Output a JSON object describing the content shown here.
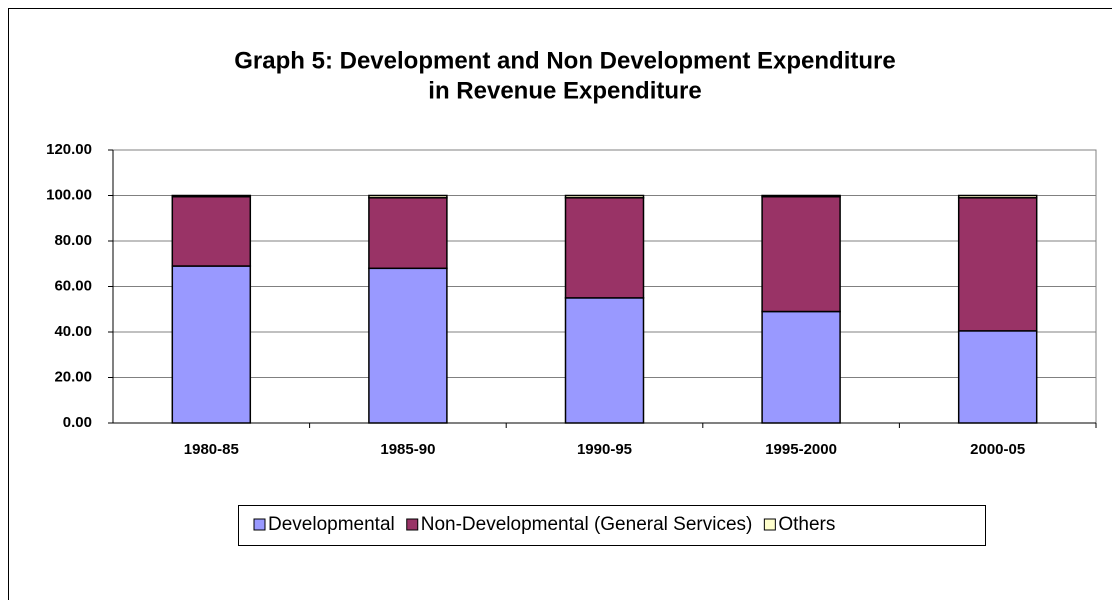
{
  "chart_data": {
    "type": "stacked_bar",
    "title": [
      "Graph 5: Development and Non Development Expenditure",
      "in Revenue Expenditure"
    ],
    "categories": [
      "1980-85",
      "1985-90",
      "1990-95",
      "1995-2000",
      "2000-05"
    ],
    "series": [
      {
        "name": "Developmental",
        "color": "#9999ff",
        "values": [
          69,
          68,
          55,
          49,
          40.5
        ]
      },
      {
        "name": "Non-Developmental (General Services)",
        "color": "#993366",
        "values": [
          30.5,
          31,
          44,
          50.5,
          58.5
        ]
      },
      {
        "name": "Others",
        "color": "#ffffcc",
        "values": [
          0.5,
          1,
          1,
          0.5,
          1
        ]
      }
    ],
    "ylim": [
      0,
      120
    ],
    "yticks": [
      {
        "value": 0,
        "label": "0.00"
      },
      {
        "value": 20,
        "label": "20.00"
      },
      {
        "value": 40,
        "label": "40.00"
      },
      {
        "value": 60,
        "label": "60.00"
      },
      {
        "value": 80,
        "label": "80.00"
      },
      {
        "value": 100,
        "label": "100.00"
      },
      {
        "value": 120,
        "label": "120.00"
      }
    ],
    "grid": true,
    "legend": "bottom"
  }
}
